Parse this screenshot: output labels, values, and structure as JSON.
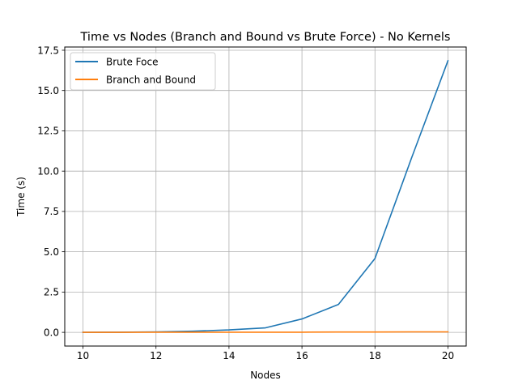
{
  "chart_data": {
    "type": "line",
    "title": "Time vs Nodes (Branch and Bound vs Brute Force) - No Kernels",
    "xlabel": "Nodes",
    "ylabel": "Time (s)",
    "xlim": [
      9.5,
      20.5
    ],
    "ylim": [
      -0.85,
      17.7
    ],
    "x_ticks": [
      10,
      12,
      14,
      16,
      18,
      20
    ],
    "y_ticks": [
      0.0,
      2.5,
      5.0,
      7.5,
      10.0,
      12.5,
      15.0,
      17.5
    ],
    "x_tick_labels": [
      "10",
      "12",
      "14",
      "16",
      "18",
      "20"
    ],
    "y_tick_labels": [
      "0.0",
      "2.5",
      "5.0",
      "7.5",
      "10.0",
      "12.5",
      "15.0",
      "17.5"
    ],
    "grid": true,
    "legend_position": "upper-left",
    "x": [
      10,
      11,
      12,
      13,
      14,
      15,
      16,
      17,
      18,
      19,
      20
    ],
    "series": [
      {
        "name": "Brute Foce",
        "color": "#1f77b4",
        "values": [
          0.0,
          0.01,
          0.03,
          0.07,
          0.15,
          0.28,
          0.83,
          1.73,
          4.58,
          10.8,
          16.85
        ]
      },
      {
        "name": "Branch and Bound",
        "color": "#ff7f0e",
        "values": [
          0.0,
          0.0,
          0.01,
          0.01,
          0.01,
          0.01,
          0.01,
          0.02,
          0.02,
          0.03,
          0.03
        ]
      }
    ]
  }
}
